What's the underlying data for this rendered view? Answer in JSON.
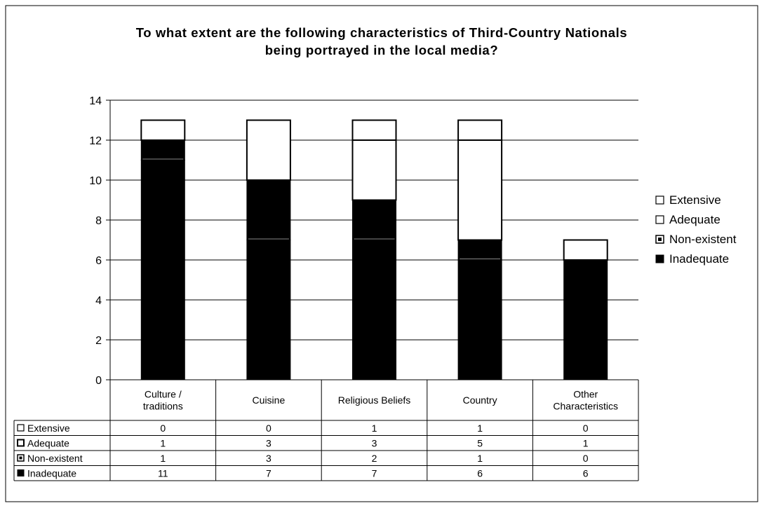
{
  "chart_data": {
    "type": "bar",
    "stacked": true,
    "title_lines": [
      "To what extent are the following characteristics of Third-Country Nationals",
      "being portrayed in the local media?"
    ],
    "categories": [
      [
        "Culture /",
        "traditions"
      ],
      [
        "Cuisine"
      ],
      [
        "Religious Beliefs"
      ],
      [
        "Country"
      ],
      [
        "Other",
        "Characteristics"
      ]
    ],
    "series": [
      {
        "name": "Inadequate",
        "values": [
          11,
          7,
          7,
          6,
          6
        ],
        "color": "#000000"
      },
      {
        "name": "Non-existent",
        "values": [
          1,
          3,
          2,
          1,
          0
        ],
        "color": "#000000"
      },
      {
        "name": "Adequate",
        "values": [
          1,
          3,
          3,
          5,
          1
        ],
        "color": "#ffffff"
      },
      {
        "name": "Extensive",
        "values": [
          0,
          0,
          1,
          1,
          0
        ],
        "color": "#ffffff"
      }
    ],
    "ylim": [
      0,
      14
    ],
    "yticks": [
      0,
      2,
      4,
      6,
      8,
      10,
      12,
      14
    ],
    "grid": true,
    "legend": "right",
    "legend_order": [
      "Extensive",
      "Adequate",
      "Non-existent",
      "Inadequate"
    ],
    "data_table": true,
    "table_row_order": [
      "Extensive",
      "Adequate",
      "Non-existent",
      "Inadequate"
    ]
  }
}
